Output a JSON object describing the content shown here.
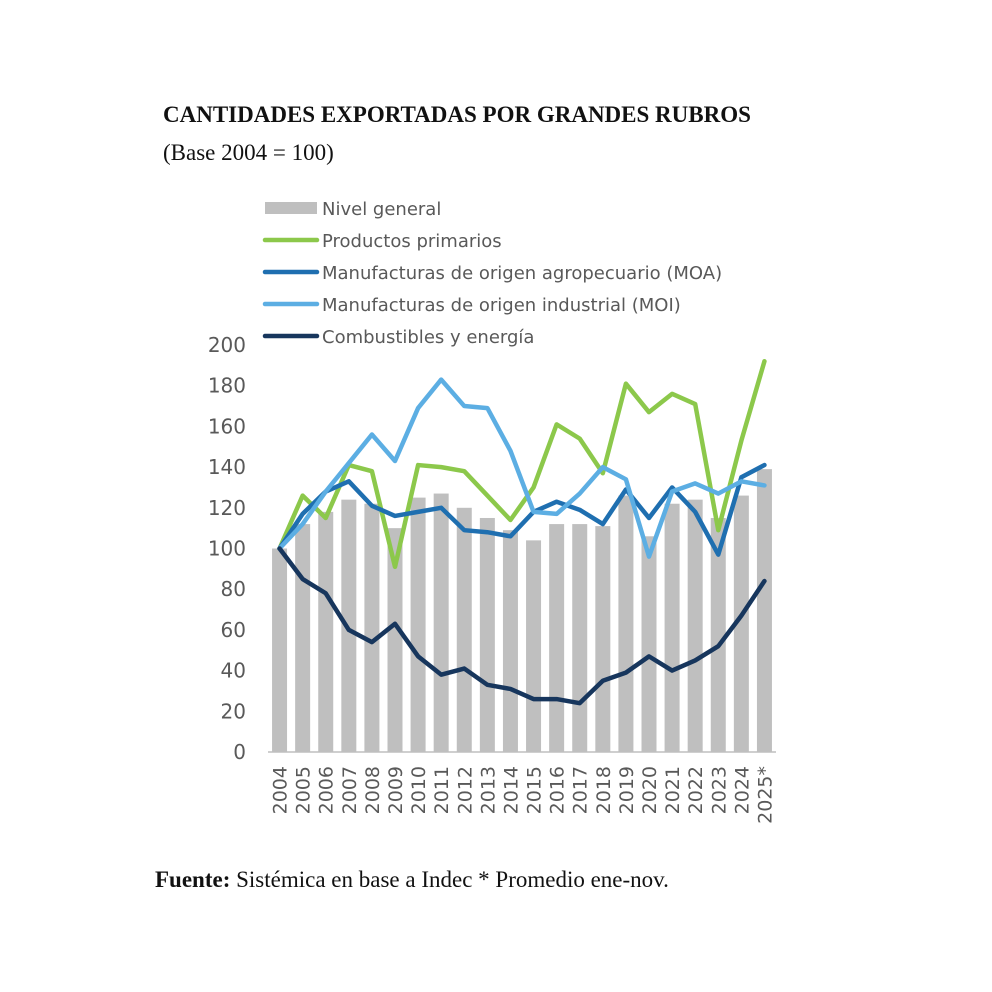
{
  "chart_data": {
    "type": "combo",
    "title": "CANTIDADES EXPORTADAS POR GRANDES RUBROS",
    "subtitle": "(Base 2004 = 100)",
    "source": {
      "label": "Fuente:",
      "text": "Sistémica en base a Indec * Promedio ene-nov."
    },
    "categories": [
      "2004",
      "2005",
      "2006",
      "2007",
      "2008",
      "2009",
      "2010",
      "2011",
      "2012",
      "2013",
      "2014",
      "2015",
      "2016",
      "2017",
      "2018",
      "2019",
      "2020",
      "2021",
      "2022",
      "2023",
      "2024",
      "2025*"
    ],
    "ylim": [
      0,
      200
    ],
    "yticks": [
      0,
      20,
      40,
      60,
      80,
      100,
      120,
      140,
      160,
      180,
      200
    ],
    "series": [
      {
        "name": "Nivel general",
        "type": "bar",
        "color": "#bfbfbf",
        "values": [
          100,
          112,
          118,
          124,
          122,
          110,
          125,
          127,
          120,
          115,
          109,
          104,
          112,
          112,
          111,
          126,
          106,
          122,
          124,
          115,
          126,
          139
        ]
      },
      {
        "name": "Productos primarios",
        "type": "line",
        "color": "#8cc84b",
        "values": [
          100,
          126,
          115,
          141,
          138,
          91,
          141,
          140,
          138,
          126,
          114,
          130,
          161,
          154,
          137,
          181,
          167,
          176,
          171,
          109,
          153,
          192
        ]
      },
      {
        "name": "Manufacturas de origen agropecuario (MOA)",
        "type": "line",
        "color": "#1f6fb0",
        "values": [
          100,
          117,
          128,
          133,
          121,
          116,
          118,
          120,
          109,
          108,
          106,
          118,
          123,
          119,
          112,
          129,
          115,
          130,
          118,
          97,
          135,
          141
        ]
      },
      {
        "name": "Manufacturas de origen industrial (MOI)",
        "type": "line",
        "color": "#5caee3",
        "values": [
          100,
          112,
          128,
          142,
          156,
          143,
          169,
          183,
          170,
          169,
          148,
          118,
          117,
          127,
          140,
          134,
          96,
          128,
          132,
          127,
          133,
          131
        ]
      },
      {
        "name": "Combustibles y energía",
        "type": "line",
        "color": "#17365d",
        "values": [
          100,
          85,
          78,
          60,
          54,
          63,
          47,
          38,
          41,
          33,
          31,
          26,
          26,
          24,
          35,
          39,
          47,
          40,
          45,
          52,
          67,
          84
        ]
      }
    ]
  }
}
